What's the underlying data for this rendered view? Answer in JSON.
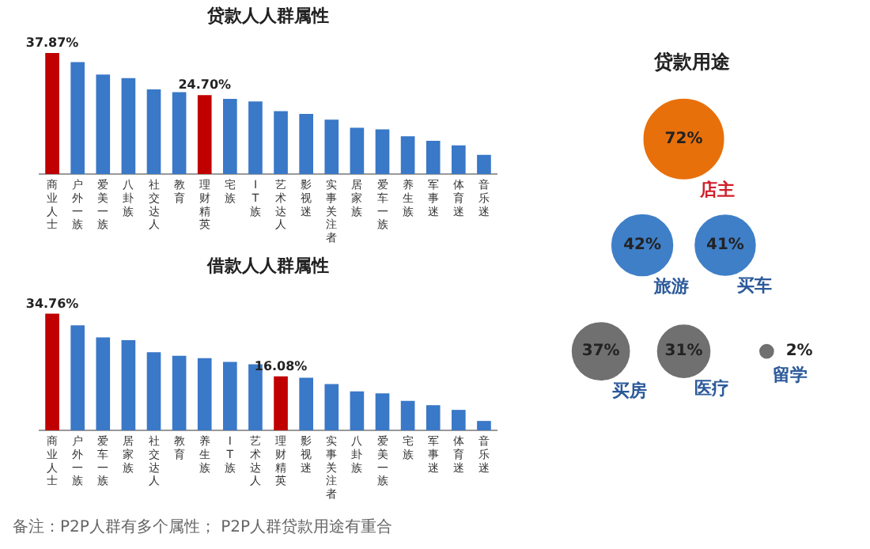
{
  "chart_data": [
    {
      "type": "bar",
      "title": "贷款人人群属性",
      "tick_labels": "x",
      "grid": false,
      "legend": false,
      "categories": [
        "商业人士",
        "户外一族",
        "爱美一族",
        "八卦族",
        "社交达人",
        "教育",
        "理财精英",
        "宅族",
        "IT族",
        "艺术达人",
        "影视迷",
        "实事关注者",
        "居家族",
        "爱车一族",
        "养生族",
        "军事迷",
        "体育迷",
        "音乐迷"
      ],
      "values": [
        37.87,
        35.0,
        31.1,
        30.0,
        26.5,
        25.6,
        24.7,
        23.5,
        22.7,
        19.7,
        18.8,
        17.0,
        14.5,
        14.0,
        11.8,
        10.4,
        9.0,
        6.0
      ],
      "colors": [
        "#c00000",
        "#3a78c8",
        "#3a78c8",
        "#3a78c8",
        "#3a78c8",
        "#3a78c8",
        "#c00000",
        "#3a78c8",
        "#3a78c8",
        "#3a78c8",
        "#3a78c8",
        "#3a78c8",
        "#3a78c8",
        "#3a78c8",
        "#3a78c8",
        "#3a78c8",
        "#3a78c8",
        "#3a78c8"
      ],
      "value_labels": [
        "37.87%",
        null,
        null,
        null,
        null,
        null,
        "24.70%",
        null,
        null,
        null,
        null,
        null,
        null,
        null,
        null,
        null,
        null,
        null
      ]
    },
    {
      "type": "bar",
      "title": "借款人人群属性",
      "tick_labels": "x",
      "grid": false,
      "legend": false,
      "categories": [
        "商业人士",
        "户外一族",
        "爱车一族",
        "居家族",
        "社交达人",
        "教育",
        "养生族",
        "IT族",
        "艺术达人",
        "理财精英",
        "影视迷",
        "实事关注者",
        "八卦族",
        "爱美一族",
        "宅族",
        "军事迷",
        "体育迷",
        "音乐迷"
      ],
      "values": [
        34.76,
        31.3,
        27.7,
        26.9,
        23.3,
        22.2,
        21.5,
        20.4,
        19.7,
        16.08,
        15.7,
        13.8,
        11.6,
        11.0,
        8.8,
        7.5,
        6.1,
        2.8
      ],
      "colors": [
        "#c00000",
        "#3a78c8",
        "#3a78c8",
        "#3a78c8",
        "#3a78c8",
        "#3a78c8",
        "#3a78c8",
        "#3a78c8",
        "#3a78c8",
        "#c00000",
        "#3a78c8",
        "#3a78c8",
        "#3a78c8",
        "#3a78c8",
        "#3a78c8",
        "#3a78c8",
        "#3a78c8",
        "#3a78c8"
      ],
      "value_labels": [
        "34.76%",
        null,
        null,
        null,
        null,
        null,
        null,
        null,
        null,
        "16.08%",
        null,
        null,
        null,
        null,
        null,
        null,
        null,
        null
      ]
    },
    {
      "type": "other",
      "title": "贷款用途",
      "categories": [
        "店主",
        "旅游",
        "买车",
        "买房",
        "医疗",
        "留学"
      ],
      "values": [
        72,
        42,
        41,
        37,
        31,
        2
      ],
      "colors": [
        "#e8700a",
        "#3f7fc8",
        "#3f7fc8",
        "#707070",
        "#707070",
        "#707070"
      ],
      "value_labels": [
        "72%",
        "42%",
        "41%",
        "37%",
        "31%",
        "2%"
      ],
      "annotations": [
        "备注：P2P人群有多个属性； P2P人群贷款用途有重合"
      ]
    }
  ]
}
